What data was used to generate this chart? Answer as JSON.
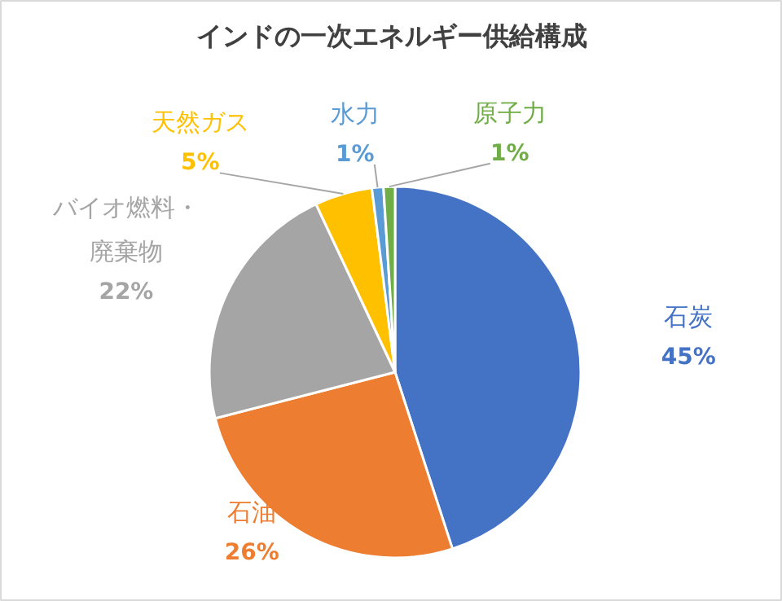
{
  "chart_data": {
    "type": "pie",
    "title": "インドの一次エネルギー供給構成",
    "categories": [
      "石炭",
      "石油",
      "バイオ燃料・廃棄物",
      "天然ガス",
      "水力",
      "原子力"
    ],
    "values": [
      45,
      26,
      22,
      5,
      1,
      1
    ],
    "colors": [
      "#4472c4",
      "#ed7d31",
      "#a5a5a5",
      "#ffc000",
      "#5b9bd5",
      "#70ad47"
    ],
    "value_labels": [
      "45%",
      "26%",
      "22%",
      "5%",
      "1%",
      "1%"
    ]
  }
}
